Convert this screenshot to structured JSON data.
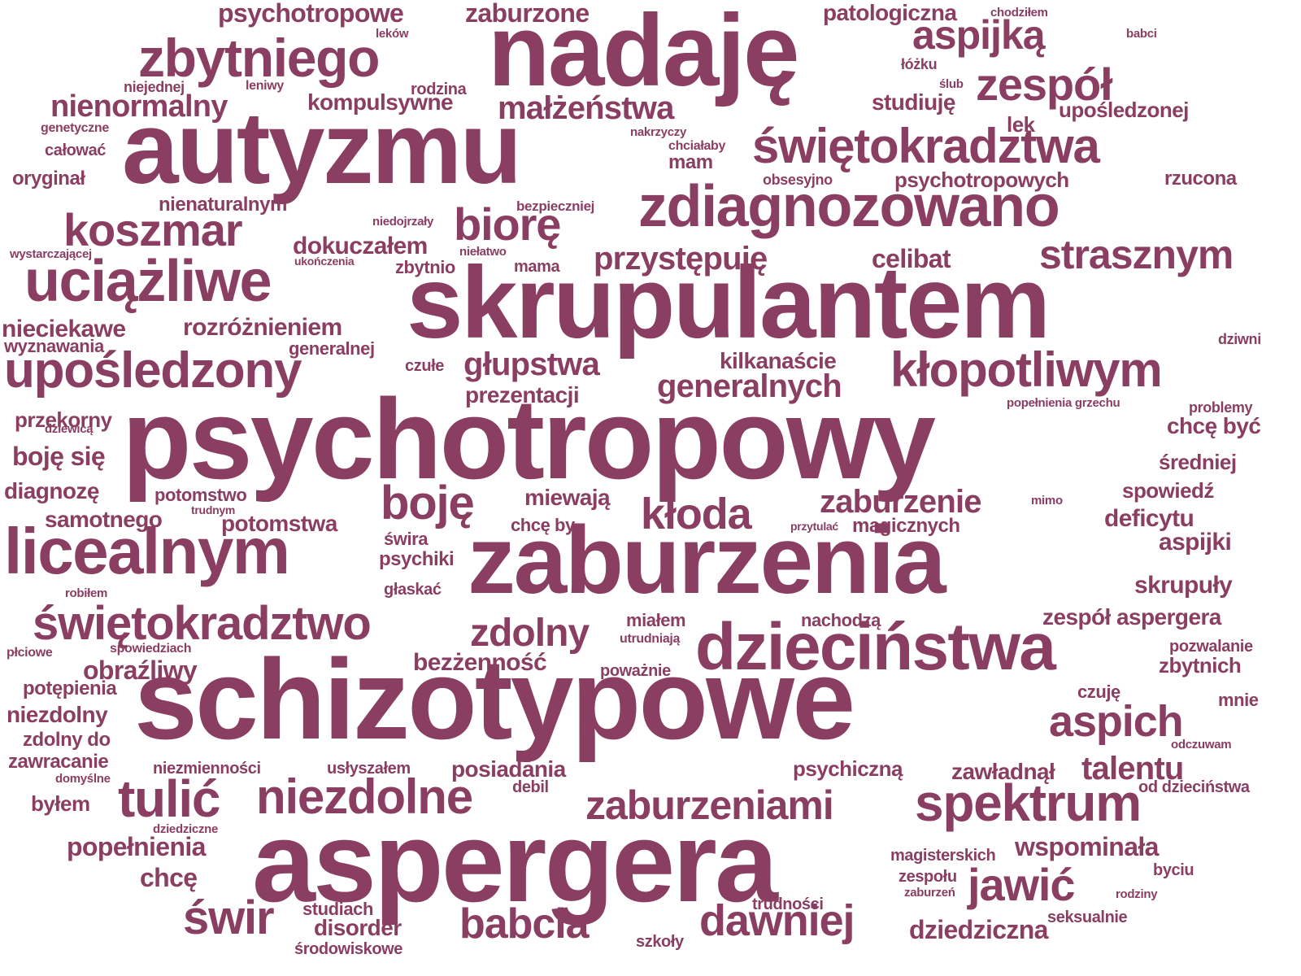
{
  "color": "#8a3e62",
  "words": [
    "psychotropowy",
    "schizotypowe",
    "aspergera",
    "nadaję",
    "autyzmu",
    "skrupulantem",
    "zaburzenia",
    "dzieciństwa",
    "licealnym",
    "zdiagnozowano",
    "uciążliwe",
    "upośledzony",
    "świętokradztwa",
    "zbytniego",
    "świętokradztwo",
    "kłopotliwym",
    "spektrum",
    "tulić",
    "niezdolne",
    "zaburzeniami",
    "koszmar",
    "dawniej",
    "aspich",
    "biorę",
    "boję",
    "kłoda",
    "babcia",
    "jawić",
    "świr",
    "zespół",
    "aspijką",
    "strasznym",
    "zdolny",
    "małżeństwa",
    "nienormalny",
    "generalnych",
    "zaburzenie",
    "przystępuję",
    "głupstwa",
    "talentu",
    "psychotropowe",
    "zaburzone",
    "patologiczna",
    "dokuczałem",
    "rozróżnieniem",
    "bezżenność",
    "obraźliwy",
    "dziedziczna",
    "wspominała",
    "popełnienia",
    "studiuję",
    "celibat",
    "nieciekawe",
    "skrupuły",
    "aspijki",
    "deficytu",
    "spowiedź",
    "chcę być",
    "samotnego",
    "potomstwa",
    "diagnozę",
    "boję się",
    "przekorny",
    "zespół aspergera",
    "miewają",
    "posiadania",
    "psychiczną",
    "zawładnął",
    "kompulsywne",
    "kilkanaście",
    "prezentacji",
    "psychotropowych",
    "upośledzonej",
    "lek",
    "mam",
    "rzucona",
    "nienaturalnym",
    "bezpieczniej",
    "zbytnio",
    "mama",
    "generalnej",
    "czułe",
    "wyznawania",
    "oryginał",
    "całować",
    "genetyczne",
    "niejednej",
    "leniwy",
    "rodzina",
    "leków",
    "chodziłem",
    "babci",
    "łóżku",
    "ślub",
    "obsesyjno",
    "nakrzyczy",
    "chciałaby",
    "niedojrzały",
    "wystarczającej",
    "ukończenia",
    "niełatwo",
    "dziwni",
    "popełnienia grzechu",
    "problemy",
    "średniej",
    "mimo",
    "potomstwo",
    "trudnym",
    "dziewicą",
    "przytulać",
    "magicznych",
    "chcę by",
    "świra",
    "psychiki",
    "głaskać",
    "robiłem",
    "miałem",
    "nachodzą",
    "utrudniają",
    "poważnie",
    "pozwalanie",
    "zbytnich",
    "czuję",
    "mnie",
    "odczuwam",
    "od dzieciństwa",
    "płciowe",
    "spowiedziach",
    "potępienia",
    "niezdolny",
    "zdolny do",
    "zawracanie",
    "niezmienności",
    "usłyszałem",
    "debil",
    "domyślne",
    "byłem",
    "dziedziczne",
    "chcę",
    "magisterskich",
    "zespołu",
    "zaburzeń",
    "byciu",
    "rodziny",
    "studiach",
    "disorder",
    "środowiskowe",
    "szkoły",
    "trudności",
    "seksualnie"
  ]
}
